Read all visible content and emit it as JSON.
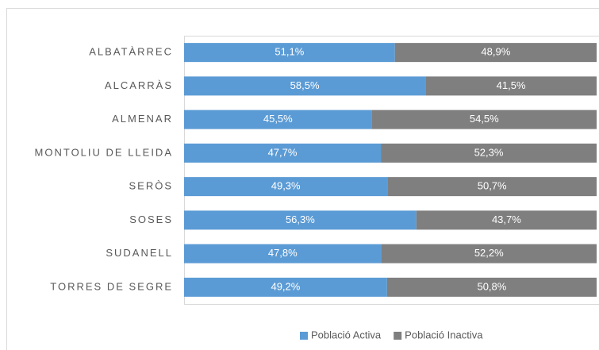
{
  "chart_data": {
    "type": "stacked_bar_horizontal",
    "categories": [
      "ALBATÀRREC",
      "ALCARRÀS",
      "ALMENAR",
      "MONTOLIU DE LLEIDA",
      "SERÒS",
      "SOSES",
      "SUDANELL",
      "TORRES DE SEGRE"
    ],
    "series": [
      {
        "name": "Població Activa",
        "color": "#5b9bd5",
        "values": [
          51.1,
          58.5,
          45.5,
          47.7,
          49.3,
          56.3,
          47.8,
          49.2
        ],
        "value_labels": [
          "51,1%",
          "58,5%",
          "45,5%",
          "47,7%",
          "49,3%",
          "56,3%",
          "47,8%",
          "49,2%"
        ]
      },
      {
        "name": "Població Inactiva",
        "color": "#7f7f7f",
        "values": [
          48.9,
          41.5,
          54.5,
          52.3,
          50.7,
          43.7,
          52.2,
          50.8
        ],
        "value_labels": [
          "48,9%",
          "41,5%",
          "54,5%",
          "52,3%",
          "50,7%",
          "43,7%",
          "52,2%",
          "50,8%"
        ]
      }
    ],
    "xlim": [
      0,
      100
    ],
    "legend": "bottom"
  }
}
